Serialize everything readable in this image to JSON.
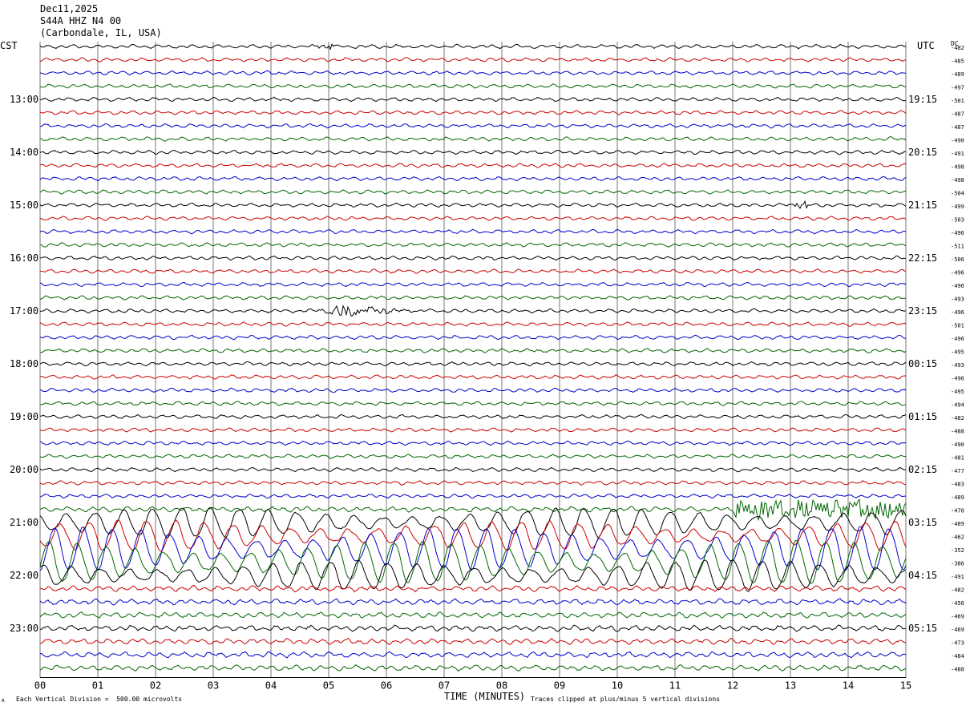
{
  "header": {
    "date": "Dec11,2025",
    "station": "S44A HHZ N4 00",
    "location": "(Carbondale, IL, USA)"
  },
  "left_zone": "CST",
  "right_zone": "UTC",
  "dc_label": "DC",
  "footer": {
    "scale_note": "Each Vertical Division =  500.00 microvolts",
    "clip_note": "Traces clipped at plus/minus 5 vertical divisions",
    "corner_mark": "A"
  },
  "chart_data": {
    "type": "line",
    "title": "",
    "xlabel": "TIME (MINUTES)",
    "ylabel": "",
    "xlim": [
      0,
      15
    ],
    "x_ticks": [
      "00",
      "01",
      "02",
      "03",
      "04",
      "05",
      "06",
      "07",
      "08",
      "09",
      "10",
      "11",
      "12",
      "13",
      "14",
      "15"
    ],
    "left_time_labels": [
      "13:00",
      "14:00",
      "15:00",
      "16:00",
      "17:00",
      "18:00",
      "19:00",
      "20:00",
      "21:00",
      "22:00",
      "23:00"
    ],
    "right_time_labels": [
      "19:15",
      "20:15",
      "21:15",
      "22:15",
      "23:15",
      "00:15",
      "01:15",
      "02:15",
      "03:15",
      "04:15",
      "05:15"
    ],
    "trace_colors": [
      "#000000",
      "#cc0000",
      "#0000cc",
      "#006600"
    ],
    "trace_count": 48,
    "trace_interval_minutes": 15,
    "dc_offsets": [
      "-482",
      "-485",
      "-489",
      "-497",
      "-501",
      "-487",
      "-487",
      "-490",
      "-491",
      "-498",
      "-498",
      "-504",
      "-499",
      "-503",
      "-496",
      "-511",
      "-506",
      "-496",
      "-496",
      "-493",
      "-496",
      "-501",
      "-496",
      "-495",
      "-493",
      "-496",
      "-495",
      "-494",
      "-482",
      "-488",
      "-490",
      "-481",
      "-477",
      "-483",
      "-489",
      "-470",
      "-489",
      "-462",
      "-352",
      "-386",
      "-491",
      "-482",
      "-456",
      "-469",
      "-469",
      "-473",
      "-484",
      "-488"
    ],
    "notable_events": [
      {
        "trace": 0,
        "minute": 4.9,
        "description": "small burst"
      },
      {
        "trace": 20,
        "minute": 5.2,
        "description": "larger burst"
      },
      {
        "trace": 12,
        "minute": 13.2,
        "description": "small burst"
      },
      {
        "trace": 35,
        "minute": 12.3,
        "description": "high-frequency noise onset"
      },
      {
        "trace_range": [
          36,
          40
        ],
        "description": "large-amplitude long-period oscillations (clipped)"
      }
    ]
  }
}
